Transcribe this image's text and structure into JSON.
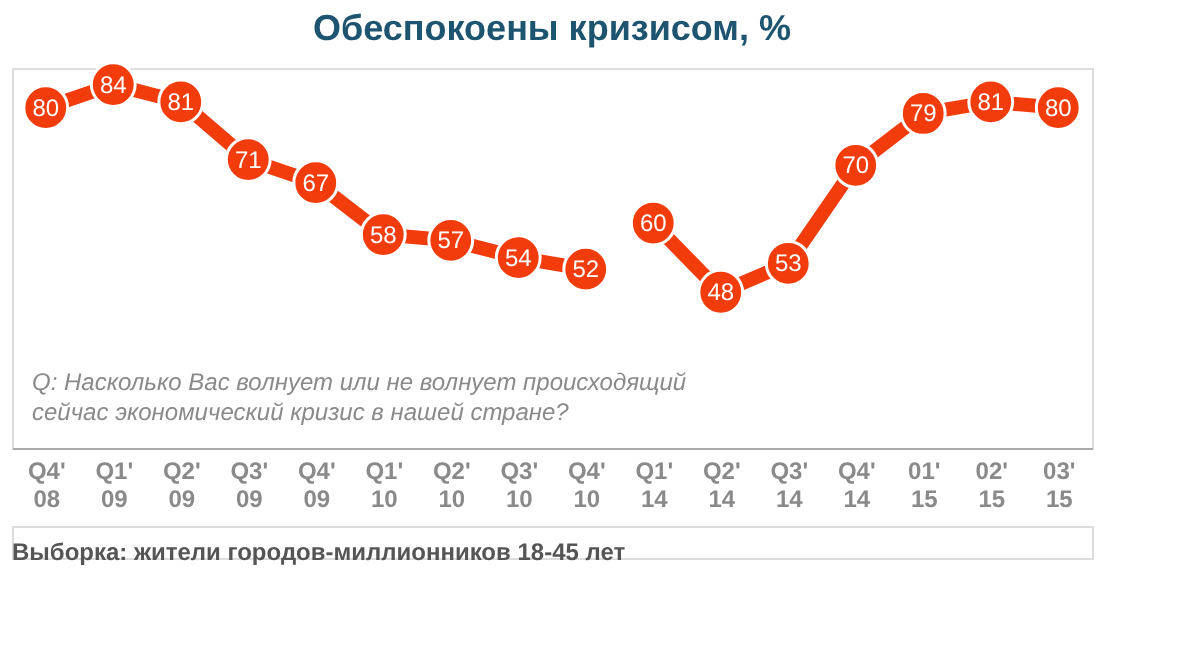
{
  "chart_data": {
    "type": "line",
    "title": "Обеспокоены кризисом, %",
    "categories": [
      "Q4' 08",
      "Q1' 09",
      "Q2' 09",
      "Q3' 09",
      "Q4' 09",
      "Q1' 10",
      "Q2' 10",
      "Q3' 10",
      "Q4' 10",
      "Q1' 14",
      "Q2' 14",
      "Q3' 14",
      "Q4' 14",
      "01' 15",
      "02' 15",
      "03' 15"
    ],
    "series": [
      {
        "color": "#f23c0c",
        "values": [
          80,
          84,
          81,
          71,
          67,
          58,
          57,
          54,
          52,
          null,
          null,
          null,
          null,
          null,
          null,
          null
        ]
      },
      {
        "color": "#f23c0c",
        "values": [
          null,
          null,
          null,
          null,
          null,
          null,
          null,
          null,
          null,
          60,
          48,
          53,
          70,
          79,
          81,
          80
        ]
      }
    ],
    "data_labels": true,
    "marker": "circle",
    "line_style": "solid",
    "grid": false,
    "tick_labels": "x",
    "annotations": [
      "Q: Насколько Вас волнует или не волнует происходящий сейчас экономический кризис в нашей стране?",
      "Выборка: жители городов-миллионников 18-45 лет"
    ]
  }
}
